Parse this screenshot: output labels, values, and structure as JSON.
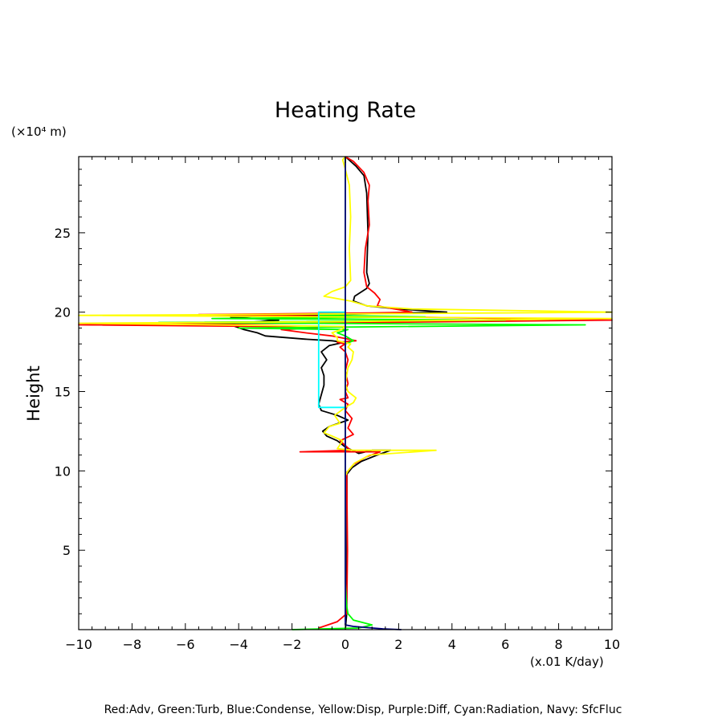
{
  "chart_data": {
    "type": "line",
    "title": "Heating Rate",
    "ylabel": "Height",
    "yunit": "(×10⁴ m)",
    "xunit": "(x.01 K/day)",
    "xlim": [
      -10,
      10
    ],
    "ylim": [
      0,
      29.8
    ],
    "xticks": [
      -10,
      -8,
      -6,
      -4,
      -2,
      0,
      2,
      4,
      6,
      8,
      10
    ],
    "yticks": [
      5,
      10,
      15,
      20,
      25
    ],
    "grid": false,
    "caption": "Red:Adv, Green:Turb, Blue:Condense, Yellow:Disp, Purple:Diff, Cyan:Radiation, Navy: SfcFluc",
    "series": [
      {
        "color": "#000000",
        "points": [
          [
            0.0,
            0.0
          ],
          [
            0.05,
            1.0
          ],
          [
            0.06,
            5.0
          ],
          [
            0.06,
            9.8
          ],
          [
            0.25,
            10.2
          ],
          [
            0.6,
            10.6
          ],
          [
            1.2,
            11.0
          ],
          [
            1.7,
            11.3
          ],
          [
            1.0,
            11.3
          ],
          [
            0.5,
            11.1
          ],
          [
            0.0,
            11.5
          ],
          [
            -0.3,
            11.9
          ],
          [
            -0.7,
            12.2
          ],
          [
            -0.85,
            12.5
          ],
          [
            -0.6,
            12.8
          ],
          [
            0.1,
            13.2
          ],
          [
            -0.3,
            13.5
          ],
          [
            -0.9,
            13.8
          ],
          [
            -1.0,
            14.2
          ],
          [
            -0.9,
            14.8
          ],
          [
            -0.8,
            15.4
          ],
          [
            -0.8,
            16.0
          ],
          [
            -0.9,
            16.5
          ],
          [
            -0.7,
            17.0
          ],
          [
            -0.9,
            17.5
          ],
          [
            -0.6,
            17.9
          ],
          [
            -0.05,
            18.1
          ],
          [
            -0.5,
            18.2
          ],
          [
            -1.5,
            18.3
          ],
          [
            -3.0,
            18.5
          ],
          [
            -3.3,
            18.7
          ],
          [
            -3.8,
            18.9
          ],
          [
            -4.3,
            19.2
          ],
          [
            -4.1,
            19.3
          ],
          [
            -2.5,
            19.5
          ],
          [
            -4.3,
            19.7
          ],
          [
            0.8,
            19.9
          ],
          [
            3.8,
            20.0
          ],
          [
            2.0,
            20.2
          ],
          [
            0.8,
            20.4
          ],
          [
            0.3,
            20.7
          ],
          [
            0.35,
            21.0
          ],
          [
            0.8,
            21.5
          ],
          [
            0.9,
            21.8
          ],
          [
            0.8,
            22.5
          ],
          [
            0.85,
            25.0
          ],
          [
            0.8,
            27.5
          ],
          [
            0.7,
            28.6
          ],
          [
            0.4,
            29.2
          ],
          [
            0.0,
            29.8
          ]
        ]
      },
      {
        "color": "#ff0000",
        "points": [
          [
            -1.0,
            0.1
          ],
          [
            -0.3,
            0.5
          ],
          [
            0.05,
            1.0
          ],
          [
            0.08,
            5.0
          ],
          [
            0.05,
            9.9
          ],
          [
            0.3,
            10.4
          ],
          [
            0.8,
            10.9
          ],
          [
            1.3,
            11.2
          ],
          [
            0.1,
            11.2
          ],
          [
            -1.7,
            11.2
          ],
          [
            0.2,
            11.3
          ],
          [
            -0.2,
            11.9
          ],
          [
            0.3,
            12.3
          ],
          [
            0.1,
            12.7
          ],
          [
            0.25,
            13.3
          ],
          [
            0.0,
            13.8
          ],
          [
            0.1,
            14.2
          ],
          [
            -0.2,
            14.5
          ],
          [
            0.1,
            14.6
          ],
          [
            0.0,
            15.0
          ],
          [
            0.1,
            15.5
          ],
          [
            0.0,
            16.3
          ],
          [
            0.1,
            17.0
          ],
          [
            0.0,
            17.5
          ],
          [
            -0.2,
            17.8
          ],
          [
            0.0,
            18.0
          ],
          [
            -0.3,
            18.1
          ],
          [
            0.4,
            18.2
          ],
          [
            -0.5,
            18.5
          ],
          [
            -1.5,
            18.7
          ],
          [
            -2.4,
            18.9
          ],
          [
            -1.0,
            19.0
          ],
          [
            -3.0,
            19.1
          ],
          [
            -10.0,
            19.2
          ],
          [
            -2.0,
            19.3
          ],
          [
            10.0,
            19.5
          ],
          [
            2.0,
            19.7
          ],
          [
            -5.5,
            19.85
          ],
          [
            1.0,
            19.95
          ],
          [
            2.5,
            20.0
          ],
          [
            1.2,
            20.4
          ],
          [
            1.3,
            20.8
          ],
          [
            1.1,
            21.2
          ],
          [
            0.8,
            21.6
          ],
          [
            0.7,
            22.5
          ],
          [
            0.75,
            24.0
          ],
          [
            0.9,
            25.5
          ],
          [
            0.85,
            27.0
          ],
          [
            0.9,
            28.0
          ],
          [
            0.7,
            28.8
          ],
          [
            0.3,
            29.5
          ],
          [
            0.0,
            29.8
          ]
        ]
      },
      {
        "color": "#00ff00",
        "points": [
          [
            -2.0,
            0.0
          ],
          [
            0.5,
            0.1
          ],
          [
            1.0,
            0.3
          ],
          [
            0.3,
            0.6
          ],
          [
            0.1,
            1.0
          ],
          [
            0.05,
            1.5
          ],
          [
            0.0,
            3.0
          ],
          [
            0.0,
            10.8
          ],
          [
            0.0,
            17.6
          ],
          [
            0.0,
            18.0
          ],
          [
            0.3,
            18.2
          ],
          [
            0.0,
            18.5
          ],
          [
            -0.3,
            18.7
          ],
          [
            0.1,
            18.9
          ],
          [
            -4.0,
            19.0
          ],
          [
            9.0,
            19.2
          ],
          [
            -7.0,
            19.35
          ],
          [
            6.0,
            19.5
          ],
          [
            -5.0,
            19.6
          ],
          [
            3.0,
            19.7
          ],
          [
            -1.0,
            19.8
          ],
          [
            0.0,
            19.9
          ],
          [
            0.0,
            29.8
          ]
        ]
      },
      {
        "color": "#ffff00",
        "points": [
          [
            0.0,
            9.7
          ],
          [
            0.1,
            10.0
          ],
          [
            0.35,
            10.5
          ],
          [
            0.7,
            10.8
          ],
          [
            0.9,
            11.0
          ],
          [
            3.4,
            11.3
          ],
          [
            0.3,
            11.3
          ],
          [
            -0.3,
            11.4
          ],
          [
            -0.1,
            11.9
          ],
          [
            -0.5,
            12.2
          ],
          [
            -0.8,
            12.4
          ],
          [
            -0.6,
            12.8
          ],
          [
            -0.2,
            13.0
          ],
          [
            -0.4,
            13.5
          ],
          [
            0.0,
            14.0
          ],
          [
            0.3,
            14.3
          ],
          [
            0.4,
            14.6
          ],
          [
            0.1,
            15.0
          ],
          [
            0.0,
            15.5
          ],
          [
            0.1,
            16.5
          ],
          [
            0.25,
            17.0
          ],
          [
            0.3,
            17.5
          ],
          [
            0.1,
            17.8
          ],
          [
            0.2,
            18.0
          ],
          [
            -0.3,
            18.2
          ],
          [
            -0.3,
            18.4
          ],
          [
            -0.5,
            18.7
          ],
          [
            -0.15,
            18.9
          ],
          [
            0.0,
            19.1
          ],
          [
            -10.0,
            19.3
          ],
          [
            -0.5,
            19.4
          ],
          [
            10.0,
            19.6
          ],
          [
            -10.0,
            19.8
          ],
          [
            1.0,
            19.9
          ],
          [
            10.0,
            20.0
          ],
          [
            2.5,
            20.2
          ],
          [
            0.8,
            20.4
          ],
          [
            0.2,
            20.7
          ],
          [
            -0.8,
            21.0
          ],
          [
            -0.5,
            21.3
          ],
          [
            0.0,
            21.6
          ],
          [
            0.2,
            22.0
          ],
          [
            0.15,
            24.0
          ],
          [
            0.2,
            26.0
          ],
          [
            0.15,
            28.0
          ],
          [
            0.0,
            29.0
          ],
          [
            -0.1,
            29.6
          ],
          [
            0.0,
            29.8
          ]
        ]
      },
      {
        "color": "#00ffff",
        "points": [
          [
            0.0,
            14.0
          ],
          [
            -1.0,
            14.0
          ],
          [
            -1.0,
            20.0
          ],
          [
            0.0,
            20.0
          ]
        ]
      },
      {
        "color": "#000080",
        "points": [
          [
            2.1,
            0.0
          ],
          [
            1.4,
            0.05
          ],
          [
            0.3,
            0.2
          ],
          [
            0.0,
            0.3
          ],
          [
            0.0,
            29.8
          ]
        ]
      }
    ]
  }
}
